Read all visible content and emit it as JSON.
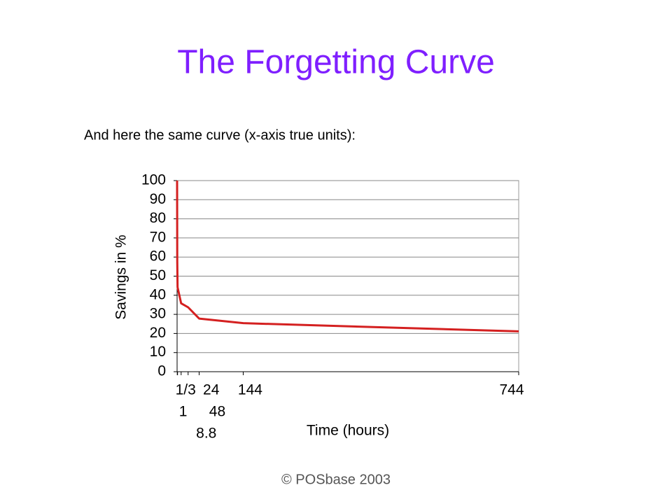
{
  "chart_data": {
    "type": "line",
    "title": "The Forgetting Curve",
    "subtitle": "And here the same curve (x-axis true units):",
    "ylabel": "Savings in %",
    "xlabel": "Time (hours)",
    "footer": "© POSbase 2003",
    "x": [
      0,
      0.33,
      1,
      8.8,
      24,
      48,
      144,
      744
    ],
    "values": [
      100,
      58.2,
      44.2,
      35.8,
      33.7,
      27.8,
      25.4,
      21.1
    ],
    "color": "#d42020",
    "xlim": [
      0,
      744
    ],
    "xticks": [
      {
        "value": 0.33,
        "label": "1/3"
      },
      1,
      8.8,
      24,
      48,
      144,
      744
    ],
    "ylim": [
      0,
      100
    ],
    "yticks": [
      0,
      10,
      20,
      30,
      40,
      50,
      60,
      70,
      80,
      90,
      100
    ],
    "grid": true
  }
}
